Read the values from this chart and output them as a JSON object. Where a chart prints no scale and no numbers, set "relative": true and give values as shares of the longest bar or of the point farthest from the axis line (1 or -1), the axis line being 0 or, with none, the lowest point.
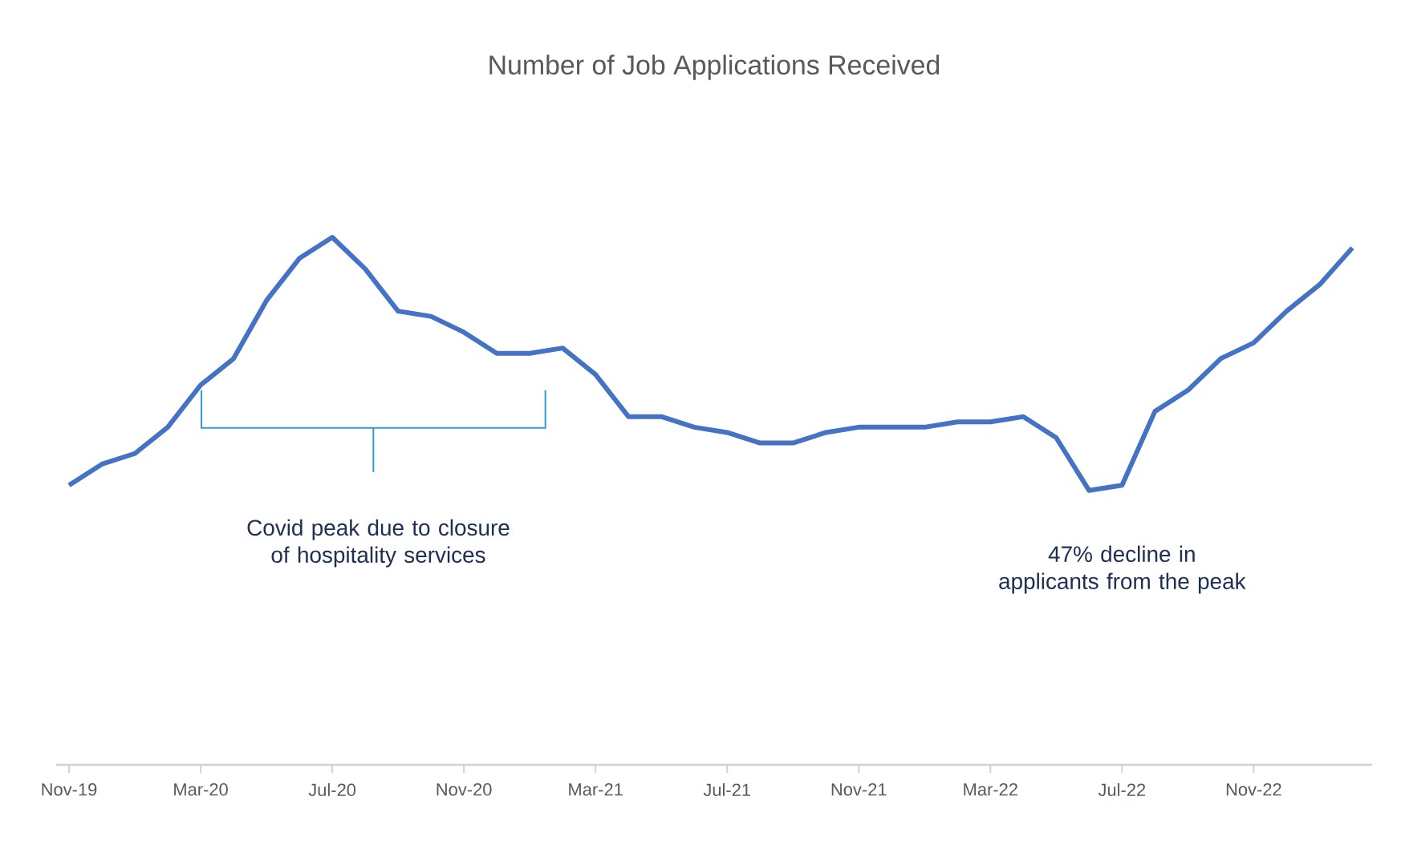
{
  "chart_data": {
    "type": "line",
    "title": "Number of Job Applications Received",
    "relative": true,
    "color": "#4472c4",
    "grid": false,
    "legend": false,
    "marker": "none",
    "line_style": "solid",
    "categories": [
      "Nov-19",
      null,
      null,
      null,
      "Mar-20",
      null,
      null,
      null,
      "Jul-20",
      null,
      null,
      null,
      "Nov-20",
      null,
      null,
      null,
      "Mar-21",
      null,
      null,
      null,
      "Jul-21",
      null,
      null,
      null,
      "Nov-21",
      null,
      null,
      null,
      "Mar-22",
      null,
      null,
      null,
      "Jul-22",
      null,
      null,
      null,
      "Nov-22",
      null,
      null,
      null
    ],
    "values": [
      0.53,
      0.57,
      0.59,
      0.64,
      0.72,
      0.77,
      0.88,
      0.96,
      1.0,
      0.94,
      0.86,
      0.85,
      0.82,
      0.78,
      0.78,
      0.79,
      0.74,
      0.66,
      0.66,
      0.64,
      0.63,
      0.61,
      0.61,
      0.63,
      0.64,
      0.64,
      0.64,
      0.65,
      0.65,
      0.66,
      0.62,
      0.52,
      0.53,
      0.67,
      0.71,
      0.77,
      0.8,
      0.86,
      0.91,
      0.98
    ],
    "annotations": [
      "Covid peak due to closure of hospitality services",
      "47% decline in applicants from the peak"
    ]
  }
}
